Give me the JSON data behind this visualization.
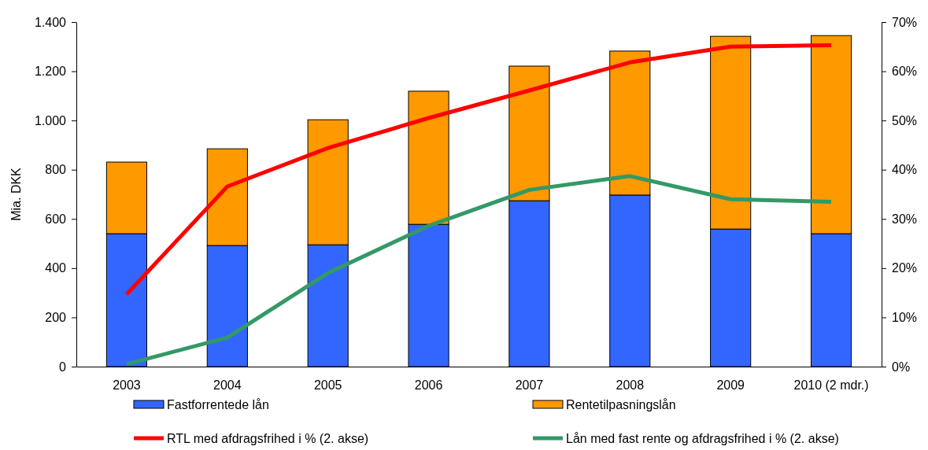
{
  "chart_data": {
    "type": "bar",
    "stacked": true,
    "ylabel": "Mia. DKK",
    "categories": [
      "2003",
      "2004",
      "2005",
      "2006",
      "2007",
      "2008",
      "2009",
      "2010 (2 mdr.)"
    ],
    "series": [
      {
        "name": "Fastforrentede lån",
        "color": "#3366ff",
        "values": [
          540,
          492,
          495,
          578,
          674,
          697,
          559,
          540
        ]
      },
      {
        "name": "Rentetilpasningslån",
        "color": "#ff9900",
        "values": [
          291,
          393,
          508,
          541,
          547,
          585,
          783,
          805
        ]
      },
      {
        "name": "RTL med afdragsfrihed i % (2. akse)",
        "type": "line",
        "axis": "y2",
        "color": "#ff0000",
        "values": [
          14.7,
          36.6,
          44.4,
          50.5,
          56.1,
          61.8,
          65.0,
          65.3
        ]
      },
      {
        "name": "Lån med fast rente og afdragsfrihed i % (2. akse)",
        "type": "line",
        "axis": "y2",
        "color": "#339966",
        "values": [
          0.5,
          5.9,
          19.0,
          28.6,
          35.9,
          38.7,
          34.0,
          33.5
        ]
      }
    ],
    "ylim": [
      0,
      1400
    ],
    "yticks": [
      0,
      200,
      400,
      600,
      800,
      {
        "value": 1000,
        "label": "1.000"
      },
      {
        "value": 1200,
        "label": "1.200"
      },
      {
        "value": 1400,
        "label": "1.400"
      }
    ],
    "y2lim": [
      0,
      70
    ],
    "y2ticks": [
      {
        "value": 0,
        "label": "0%"
      },
      {
        "value": 10,
        "label": "10%"
      },
      {
        "value": 20,
        "label": "20%"
      },
      {
        "value": 30,
        "label": "30%"
      },
      {
        "value": 40,
        "label": "40%"
      },
      {
        "value": 50,
        "label": "50%"
      },
      {
        "value": 60,
        "label": "60%"
      },
      {
        "value": 70,
        "label": "70%"
      }
    ],
    "legend": "bottom",
    "marker": "none"
  }
}
